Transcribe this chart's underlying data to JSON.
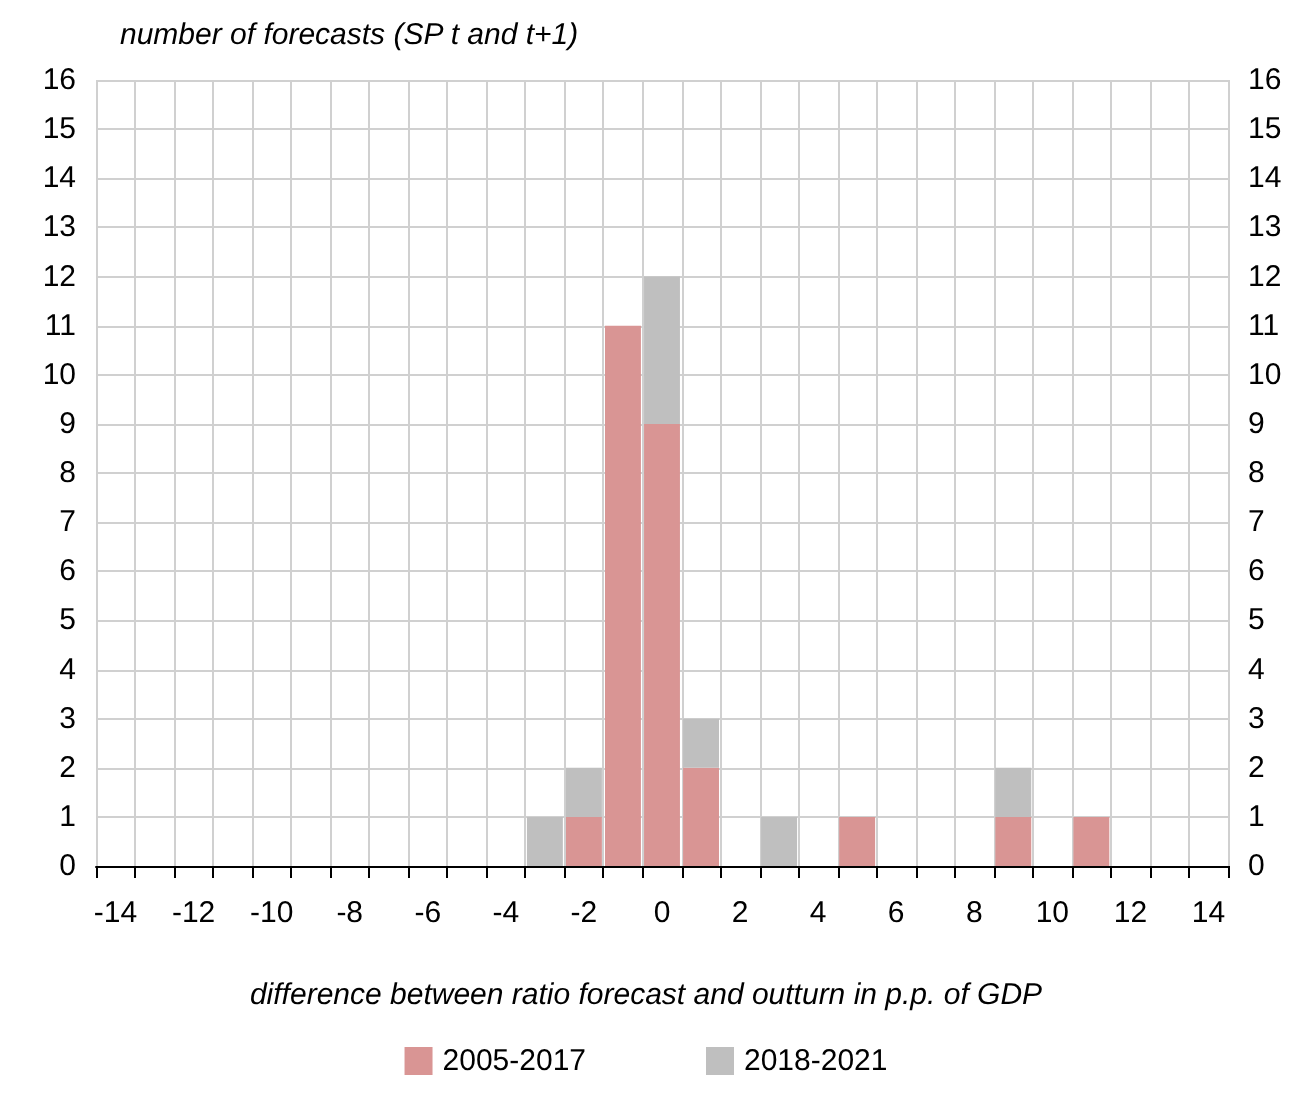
{
  "chart_data": {
    "type": "bar",
    "ylabel": "number of forecasts (SP t and t+1)",
    "xlabel": "difference between ratio forecast and outturn in p.p. of GDP",
    "categories": [
      "-14",
      null,
      "-12",
      null,
      "-10",
      null,
      "-8",
      null,
      "-6",
      null,
      "-4",
      null,
      "-2",
      null,
      "0",
      null,
      "2",
      null,
      "4",
      null,
      "6",
      null,
      "8",
      null,
      "10",
      null,
      "12",
      null,
      "14"
    ],
    "stacked": true,
    "series": [
      {
        "name": "2005-2017",
        "color": "#d99594",
        "values": [
          0,
          0,
          0,
          0,
          0,
          0,
          0,
          0,
          0,
          0,
          0,
          0,
          1,
          11,
          9,
          2,
          0,
          0,
          0,
          1,
          0,
          0,
          0,
          1,
          0,
          1,
          0,
          0,
          0
        ]
      },
      {
        "name": "2018-2021",
        "color": "#bfbfbf",
        "values": [
          0,
          0,
          0,
          0,
          0,
          0,
          0,
          0,
          0,
          0,
          0,
          1,
          1,
          0,
          3,
          1,
          0,
          1,
          0,
          0,
          0,
          0,
          0,
          1,
          0,
          0,
          0,
          0,
          0
        ]
      }
    ],
    "ylim": [
      0,
      16
    ],
    "yticks": [
      0,
      1,
      2,
      3,
      4,
      5,
      6,
      7,
      8,
      9,
      10,
      11,
      12,
      13,
      14,
      15,
      16
    ],
    "y2lim": [
      0,
      16
    ],
    "y2ticks": [
      0,
      1,
      2,
      3,
      4,
      5,
      6,
      7,
      8,
      9,
      10,
      11,
      12,
      13,
      14,
      15,
      16
    ],
    "grid": true,
    "legend": "bottom"
  }
}
